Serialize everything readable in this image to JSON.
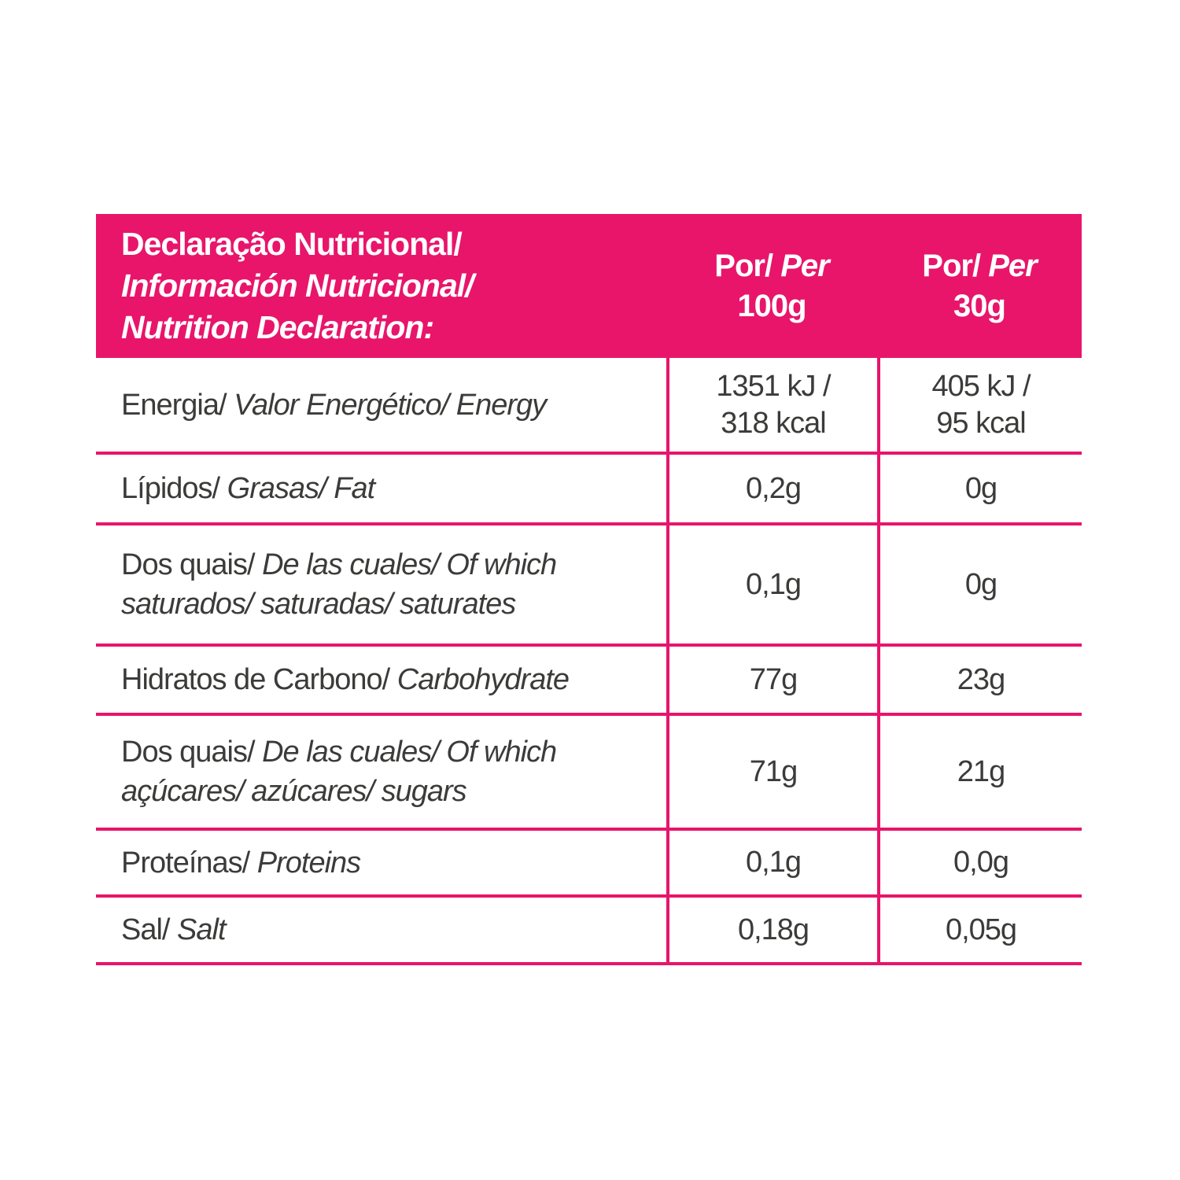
{
  "page": {
    "background": "#ffffff"
  },
  "table": {
    "accent_color": "#E8156B",
    "text_color": "#3B3B3A",
    "header": {
      "title_lines": [
        {
          "text": "Declaração Nutricional/",
          "italic": false
        },
        {
          "text": "Información Nutricional/",
          "italic": true
        },
        {
          "text": "Nutrition Declaration:",
          "italic": true
        }
      ],
      "columns": [
        {
          "label_regular": "Por/",
          "label_italic": "Per",
          "amount": "100g"
        },
        {
          "label_regular": "Por/",
          "label_italic": "Per",
          "amount": "30g"
        }
      ]
    },
    "rows": [
      {
        "name_regular": "Energia/",
        "name_italic": " Valor Energético/ Energy",
        "per_100g": "1351 kJ /\n318 kcal",
        "per_30g": "405 kJ /\n95 kcal"
      },
      {
        "name_regular": "Lípidos/",
        "name_italic": " Grasas/ Fat",
        "per_100g": "0,2g",
        "per_30g": "0g"
      },
      {
        "name_regular": "Dos quais/",
        "name_italic": " De las cuales/ Of which\nsaturados/ saturadas/ saturates",
        "per_100g": "0,1g",
        "per_30g": "0g"
      },
      {
        "name_regular": "Hidratos de Carbono/",
        "name_italic": " Carbohydrate",
        "per_100g": "77g",
        "per_30g": "23g"
      },
      {
        "name_regular": "Dos quais/",
        "name_italic": " De las cuales/ Of which\naçúcares/ azúcares/ sugars",
        "per_100g": "71g",
        "per_30g": "21g"
      },
      {
        "name_regular": "Proteínas/",
        "name_italic": " Proteins",
        "per_100g": "0,1g",
        "per_30g": "0,0g"
      },
      {
        "name_regular": "Sal/",
        "name_italic": " Salt",
        "per_100g": "0,18g",
        "per_30g": "0,05g"
      }
    ]
  }
}
